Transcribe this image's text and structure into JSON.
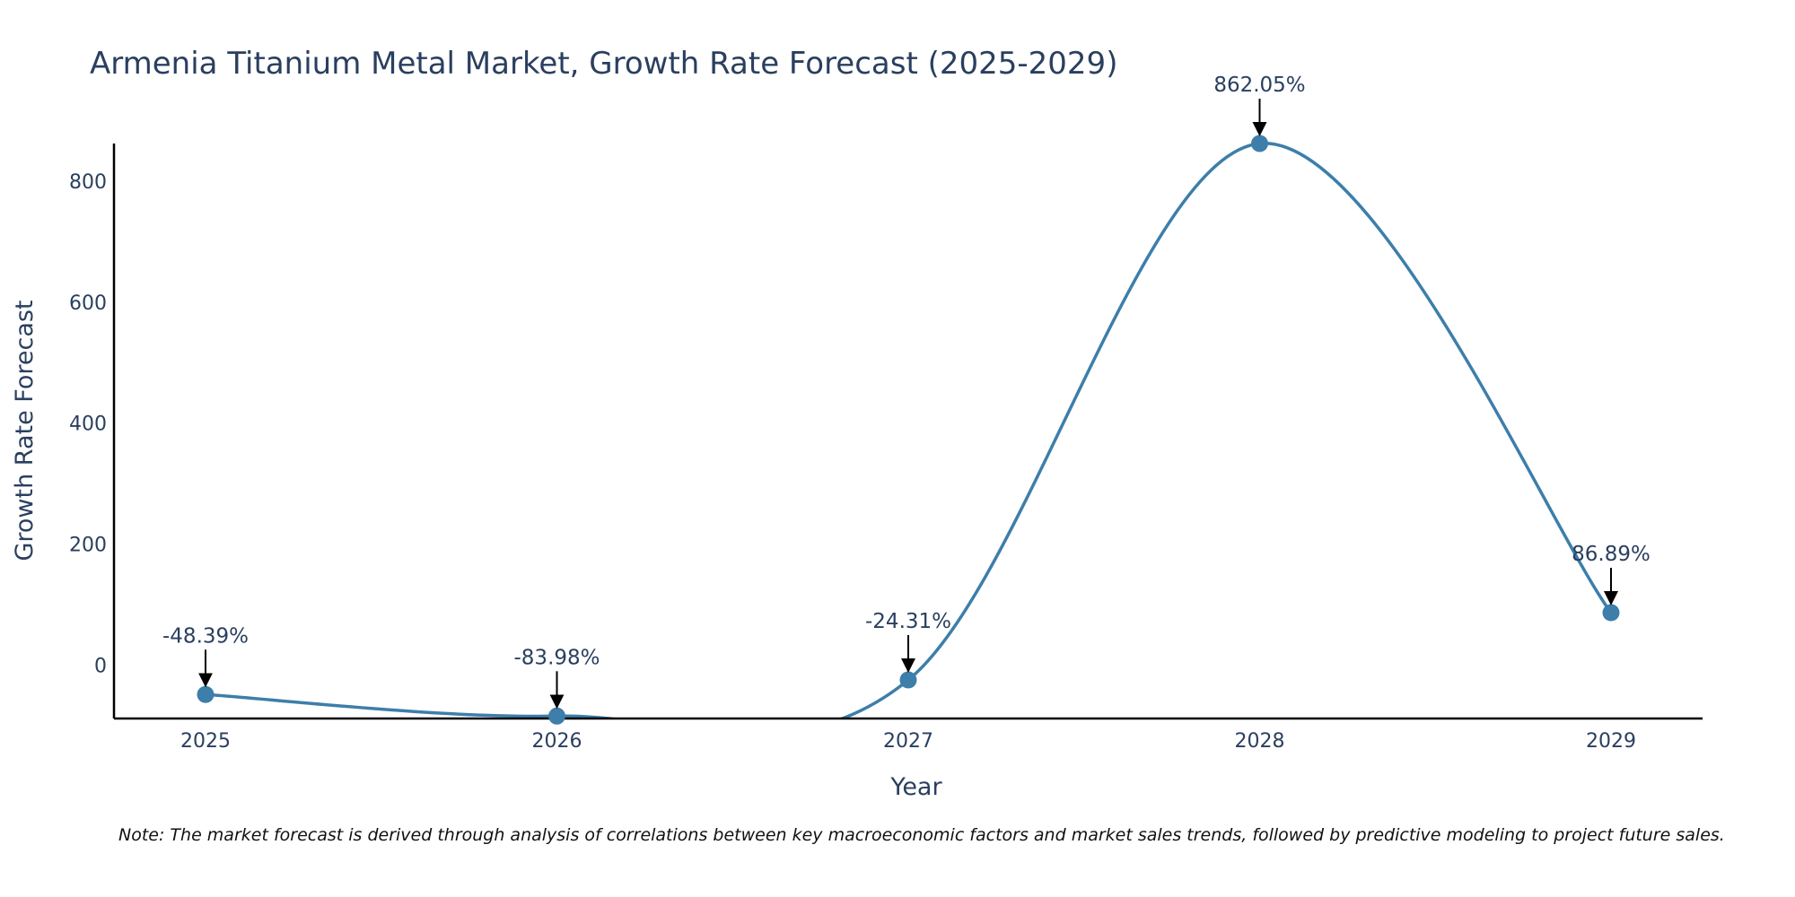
{
  "chart_data": {
    "type": "line",
    "title": "Armenia Titanium Metal Market, Growth Rate Forecast (2025-2029)",
    "xlabel": "Year",
    "ylabel": "Growth Rate Forecast",
    "categories": [
      "2025",
      "2026",
      "2027",
      "2028",
      "2029"
    ],
    "values": [
      -48.39,
      -83.98,
      -24.31,
      862.05,
      86.89
    ],
    "data_labels": [
      "-48.39%",
      "-83.98%",
      "-24.31%",
      "862.05%",
      "86.89%"
    ],
    "y_ticks": [
      0,
      200,
      400,
      600,
      800
    ],
    "ylim": [
      -88,
      862.05
    ],
    "line_shape": "spline",
    "grid": false,
    "line_color": "#3d7eaa",
    "marker_color": "#3d7eaa"
  },
  "footnote": "Note: The market forecast is derived through analysis of correlations between key macroeconomic factors and market sales trends, followed by predictive modeling to project future sales."
}
